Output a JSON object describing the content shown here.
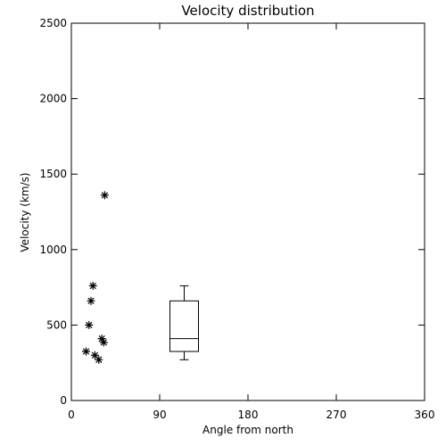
{
  "chart_data": {
    "type": "scatter",
    "title": "Velocity distribution",
    "xlabel": "Angle from north",
    "ylabel": "Velocity (km/s)",
    "xlim": [
      0,
      360
    ],
    "ylim": [
      0,
      2500
    ],
    "xticks": [
      0,
      90,
      180,
      270,
      360
    ],
    "yticks": [
      0,
      500,
      1000,
      1500,
      2000,
      2500
    ],
    "grid": false,
    "marker": "asterisk",
    "color": "#000000",
    "points": [
      {
        "x": 34,
        "y": 1360
      },
      {
        "x": 22,
        "y": 760
      },
      {
        "x": 20,
        "y": 660
      },
      {
        "x": 18,
        "y": 500
      },
      {
        "x": 31,
        "y": 410
      },
      {
        "x": 33,
        "y": 385
      },
      {
        "x": 15,
        "y": 325
      },
      {
        "x": 24,
        "y": 300
      },
      {
        "x": 28,
        "y": 270
      }
    ],
    "boxplot": {
      "x": 115,
      "min": 270,
      "q1": 325,
      "median": 410,
      "q3": 660,
      "max": 760
    }
  }
}
